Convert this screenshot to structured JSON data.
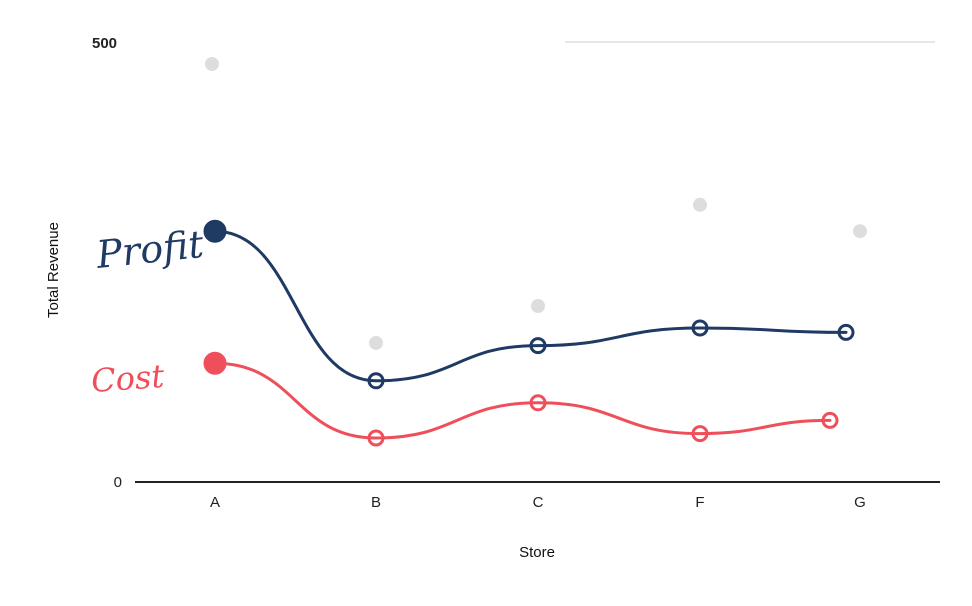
{
  "chart_data": {
    "type": "line",
    "title": "",
    "xlabel": "Store",
    "ylabel": "Total Revenue",
    "categories": [
      "A",
      "B",
      "C",
      "F",
      "G"
    ],
    "ylim": [
      0,
      500
    ],
    "y_ticks": [
      "0",
      "500"
    ],
    "grid": false,
    "legend": "none",
    "series": [
      {
        "name": "Profit",
        "color": "#1f3a63",
        "values": [
          285,
          115,
          155,
          175,
          170
        ]
      },
      {
        "name": "Cost",
        "color": "#ef4f5a",
        "values": [
          135,
          50,
          90,
          55,
          70
        ]
      }
    ],
    "background_points": {
      "color": "#d4d4d4",
      "values": [
        475,
        158,
        200,
        315,
        285
      ]
    }
  }
}
